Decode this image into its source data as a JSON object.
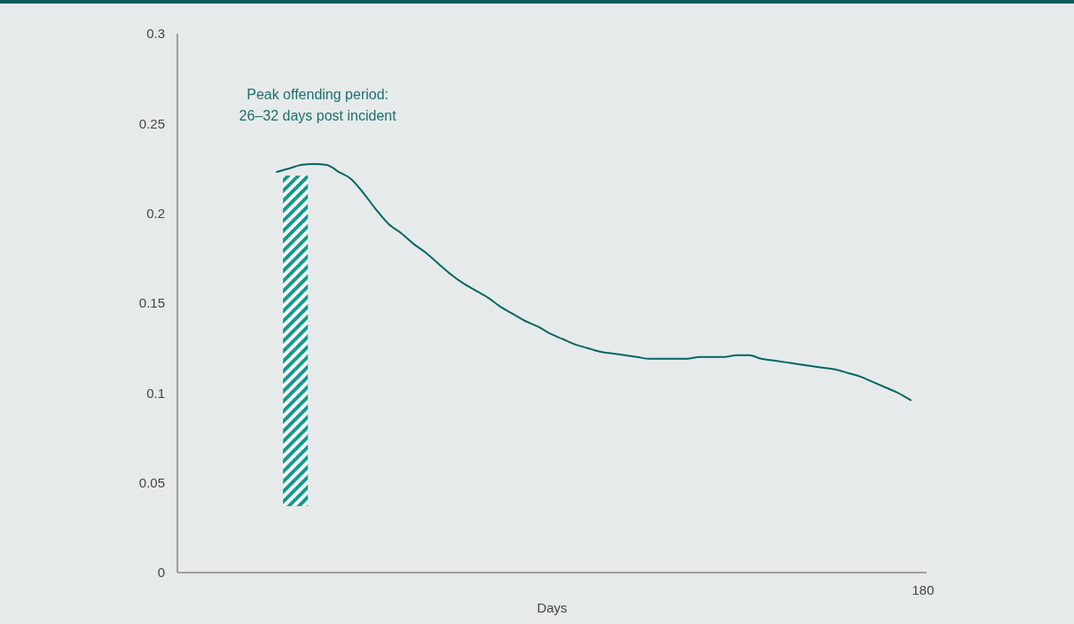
{
  "chart_data": {
    "type": "line",
    "xlabel": "Days",
    "categories": [
      null,
      null,
      null,
      null,
      null,
      null,
      null,
      null,
      null,
      null,
      null,
      null,
      null,
      null,
      null,
      null,
      null,
      null,
      null,
      null,
      null,
      null,
      null,
      null,
      null,
      null,
      null,
      null,
      null,
      null,
      null,
      null,
      null,
      null,
      null,
      null,
      null,
      null,
      null,
      null,
      null,
      null,
      null,
      null,
      null,
      null,
      null,
      null,
      null,
      null,
      null,
      null,
      null,
      null,
      null,
      null,
      null,
      null,
      null,
      "180"
    ],
    "series": [
      {
        "type": "bar",
        "color": "#11998e",
        "base": [
          null,
          null,
          null,
          null,
          null,
          null,
          null,
          null,
          0.037,
          0.037,
          null,
          null,
          null,
          null,
          null,
          null,
          null,
          null,
          null,
          null,
          null,
          null,
          null,
          null,
          null,
          null,
          null,
          null,
          null,
          null,
          null,
          null,
          null,
          null,
          null,
          null,
          null,
          null,
          null,
          null,
          null,
          null,
          null,
          null,
          null,
          null,
          null,
          null,
          null,
          null,
          null,
          null,
          null,
          null,
          null,
          null,
          null,
          null,
          null,
          null
        ],
        "values": [
          null,
          null,
          null,
          null,
          null,
          null,
          null,
          null,
          0.184,
          0.184,
          null,
          null,
          null,
          null,
          null,
          null,
          null,
          null,
          null,
          null,
          null,
          null,
          null,
          null,
          null,
          null,
          null,
          null,
          null,
          null,
          null,
          null,
          null,
          null,
          null,
          null,
          null,
          null,
          null,
          null,
          null,
          null,
          null,
          null,
          null,
          null,
          null,
          null,
          null,
          null,
          null,
          null,
          null,
          null,
          null,
          null,
          null,
          null,
          null,
          null
        ]
      },
      {
        "color": "#006666",
        "values": [
          null,
          null,
          null,
          null,
          null,
          null,
          null,
          0.223,
          0.225,
          0.227,
          0.2275,
          0.227,
          0.223,
          0.219,
          0.211,
          0.202,
          0.194,
          0.189,
          0.183,
          0.178,
          0.172,
          0.166,
          0.161,
          0.157,
          0.153,
          0.148,
          0.144,
          0.14,
          0.137,
          0.133,
          0.13,
          0.127,
          0.125,
          0.123,
          0.122,
          0.121,
          0.12,
          0.119,
          0.119,
          0.119,
          0.119,
          0.12,
          0.12,
          0.12,
          0.121,
          0.121,
          0.119,
          0.118,
          0.117,
          0.116,
          0.115,
          0.114,
          0.113,
          0.111,
          0.109,
          0.106,
          0.103,
          0.1,
          0.096,
          null
        ]
      }
    ],
    "ylim": [
      0,
      0.3
    ],
    "yticks": [
      0,
      0.05,
      0.1,
      0.15,
      0.2,
      0.25,
      0.3
    ],
    "annotations": [
      "Peak offending period:\n26–32 days post incident"
    ]
  }
}
